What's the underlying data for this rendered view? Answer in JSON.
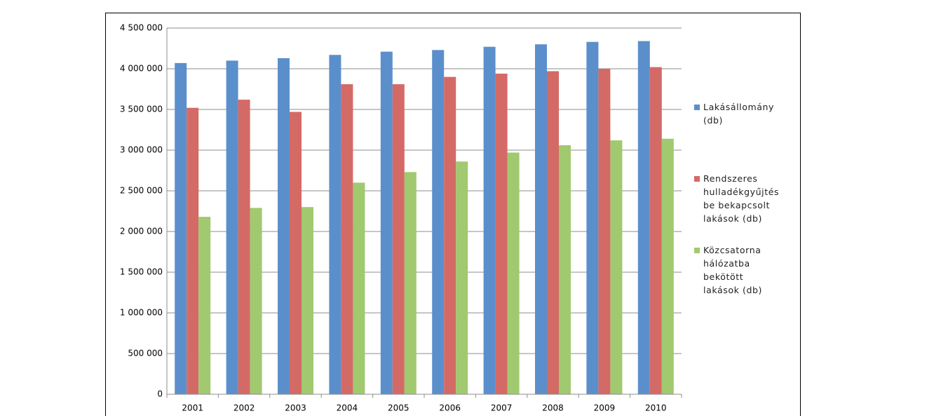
{
  "chart_data": {
    "type": "bar",
    "categories": [
      "2001",
      "2002",
      "2003",
      "2004",
      "2005",
      "2006",
      "2007",
      "2008",
      "2009",
      "2010"
    ],
    "series": [
      {
        "name": "Lakásállomány (db)",
        "color": "#5b8fcc",
        "values": [
          4070000,
          4100000,
          4130000,
          4170000,
          4210000,
          4230000,
          4270000,
          4300000,
          4330000,
          4340000
        ]
      },
      {
        "name": "Rendszeres hulladékgyűjtés be bekapcsolt lakások (db)",
        "color": "#d46a66",
        "values": [
          3520000,
          3620000,
          3470000,
          3810000,
          3810000,
          3900000,
          3940000,
          3970000,
          4000000,
          4020000
        ]
      },
      {
        "name": "Közcsatorna hálózatba bekötött lakások (db)",
        "color": "#a1c96f",
        "values": [
          2180000,
          2290000,
          2300000,
          2600000,
          2730000,
          2860000,
          2970000,
          3060000,
          3120000,
          3140000
        ]
      }
    ],
    "ylim": [
      0,
      4500000
    ],
    "yticks": [
      0,
      {
        "value": 500000,
        "label": "500 000"
      },
      {
        "value": 1000000,
        "label": "1 000 000"
      },
      {
        "value": 1500000,
        "label": "1 500 000"
      },
      {
        "value": 2000000,
        "label": "2 000 000"
      },
      {
        "value": 2500000,
        "label": "2 500 000"
      },
      {
        "value": 3000000,
        "label": "3 000 000"
      },
      {
        "value": 3500000,
        "label": "3 500 000"
      },
      {
        "value": 4000000,
        "label": "4 000 000"
      },
      {
        "value": 4500000,
        "label": "4 500 000"
      }
    ],
    "grid": true,
    "legend": "right"
  }
}
